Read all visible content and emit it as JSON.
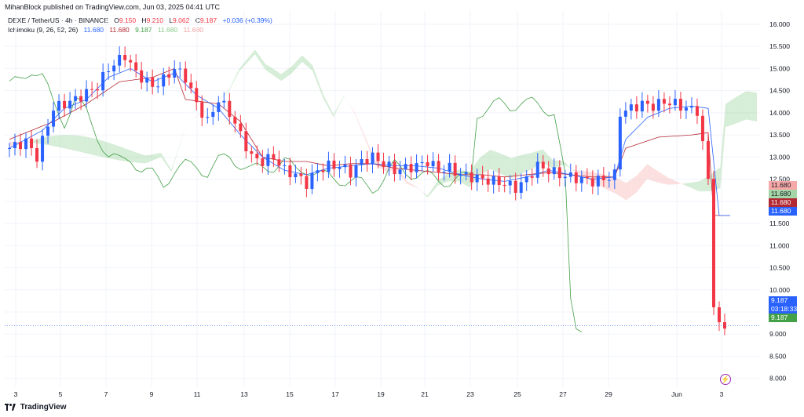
{
  "header": {
    "published_text": "MihanBlock published on TradingView.com, Jun 03, 2025 04:41 UTC"
  },
  "legend": {
    "symbol": "DEXE / TetherUS · 4h · BINANCE",
    "o_label": "O",
    "o_value": "9.150",
    "h_label": "H",
    "h_value": "9.210",
    "l_label": "L",
    "l_value": "9.062",
    "c_label": "C",
    "c_value": "9.187",
    "change": "+0.036 (+0.39%)",
    "ichimoku_label": "Ichimoku (9, 26, 52, 26)",
    "ichimoku_values": [
      "11.680",
      "11.680",
      "9.187",
      "11.680",
      "11.680"
    ]
  },
  "colors": {
    "up": "#2962ff",
    "down": "#f23645",
    "conversion": "#2962ff",
    "base": "#b22833",
    "lagging": "#43a047",
    "cloud_bull": "#a5d6a7",
    "cloud_bear": "#f8bbbb",
    "grid": "#f0f3fa",
    "axis_text": "#131722"
  },
  "price_badges": [
    {
      "value": "11.680",
      "color": "#f7a8a8",
      "text_color": "#131722"
    },
    {
      "value": "11.680",
      "color": "#a5d6a7",
      "text_color": "#131722"
    },
    {
      "value": "11.680",
      "color": "#b22833",
      "text_color": "#ffffff"
    },
    {
      "value": "11.680",
      "color": "#2962ff",
      "text_color": "#ffffff"
    },
    {
      "value": "9.187",
      "color": "#2962ff",
      "text_color": "#ffffff"
    },
    {
      "value": "03:18:33",
      "color": "#2962ff",
      "text_color": "#ffffff"
    },
    {
      "value": "9.187",
      "color": "#43a047",
      "text_color": "#ffffff"
    }
  ],
  "footer": {
    "brand": "TradingView",
    "flash_icon": "lightning-icon"
  },
  "chart_data": {
    "type": "candlestick",
    "ylim": [
      7.8,
      16.3
    ],
    "y_ticks": [
      "8.000",
      "8.500",
      "9.000",
      "9.500",
      "10.000",
      "10.500",
      "11.000",
      "11.500",
      "12.000",
      "12.500",
      "13.000",
      "13.500",
      "14.000",
      "14.500",
      "15.000",
      "15.500",
      "16.000"
    ],
    "x_ticks": [
      "3",
      "5",
      "7",
      "9",
      "11",
      "13",
      "15",
      "17",
      "19",
      "21",
      "23",
      "25",
      "27",
      "29",
      "Jun",
      "3"
    ],
    "grid": true,
    "last_price": 9.187,
    "price_path": [
      [
        0,
        13.2
      ],
      [
        3,
        13.35
      ],
      [
        5,
        13.0
      ],
      [
        8,
        14.1
      ],
      [
        12,
        14.3
      ],
      [
        16,
        14.6
      ],
      [
        18,
        15.0
      ],
      [
        21,
        15.3
      ],
      [
        23,
        14.9
      ],
      [
        26,
        14.6
      ],
      [
        28,
        14.75
      ],
      [
        30,
        15.0
      ],
      [
        32,
        14.8
      ],
      [
        34,
        14.2
      ],
      [
        36,
        13.8
      ],
      [
        38,
        14.3
      ],
      [
        40,
        14.0
      ],
      [
        42,
        13.5
      ],
      [
        44,
        13.0
      ],
      [
        46,
        12.9
      ],
      [
        48,
        13.0
      ],
      [
        50,
        12.7
      ],
      [
        52,
        12.6
      ],
      [
        54,
        12.4
      ],
      [
        56,
        12.7
      ],
      [
        58,
        12.8
      ],
      [
        60,
        12.8
      ],
      [
        62,
        12.65
      ],
      [
        64,
        12.9
      ],
      [
        66,
        13.0
      ],
      [
        68,
        12.85
      ],
      [
        70,
        12.7
      ],
      [
        72,
        12.75
      ],
      [
        74,
        12.8
      ],
      [
        76,
        12.9
      ],
      [
        78,
        12.7
      ],
      [
        80,
        12.75
      ],
      [
        82,
        12.6
      ],
      [
        84,
        12.55
      ],
      [
        86,
        12.5
      ],
      [
        88,
        12.45
      ],
      [
        90,
        12.4
      ],
      [
        92,
        12.3
      ],
      [
        94,
        12.5
      ],
      [
        96,
        12.8
      ],
      [
        98,
        12.7
      ],
      [
        100,
        12.6
      ],
      [
        102,
        12.55
      ],
      [
        104,
        12.5
      ],
      [
        106,
        12.45
      ],
      [
        108,
        12.5
      ],
      [
        110,
        12.6
      ],
      [
        111,
        14.0
      ],
      [
        113,
        14.1
      ],
      [
        115,
        14.2
      ],
      [
        117,
        14.15
      ],
      [
        119,
        14.25
      ],
      [
        121,
        14.2
      ],
      [
        123,
        14.1
      ],
      [
        125,
        14.05
      ],
      [
        127,
        12.5
      ],
      [
        128,
        9.7
      ],
      [
        129,
        9.15
      ],
      [
        130,
        9.187
      ]
    ],
    "ichimoku": {
      "conversion": [
        [
          0,
          13.2
        ],
        [
          6,
          13.6
        ],
        [
          10,
          14.1
        ],
        [
          14,
          14.3
        ],
        [
          18,
          14.8
        ],
        [
          22,
          15.0
        ],
        [
          26,
          14.7
        ],
        [
          30,
          14.9
        ],
        [
          34,
          14.4
        ],
        [
          38,
          14.1
        ],
        [
          42,
          13.5
        ],
        [
          46,
          13.0
        ],
        [
          50,
          12.7
        ],
        [
          54,
          12.6
        ],
        [
          58,
          12.75
        ],
        [
          62,
          12.8
        ],
        [
          66,
          12.85
        ],
        [
          70,
          12.8
        ],
        [
          74,
          12.8
        ],
        [
          78,
          12.75
        ],
        [
          82,
          12.6
        ],
        [
          86,
          12.5
        ],
        [
          90,
          12.45
        ],
        [
          94,
          12.55
        ],
        [
          98,
          12.7
        ],
        [
          102,
          12.6
        ],
        [
          106,
          12.5
        ],
        [
          110,
          12.55
        ],
        [
          112,
          13.4
        ],
        [
          116,
          13.9
        ],
        [
          120,
          14.1
        ],
        [
          124,
          14.15
        ],
        [
          127,
          14.1
        ],
        [
          129,
          11.68
        ],
        [
          131,
          11.68
        ]
      ],
      "base": [
        [
          0,
          13.4
        ],
        [
          8,
          13.8
        ],
        [
          14,
          14.2
        ],
        [
          20,
          14.7
        ],
        [
          26,
          14.8
        ],
        [
          30,
          15.0
        ],
        [
          32,
          14.3
        ],
        [
          38,
          14.2
        ],
        [
          42,
          13.8
        ],
        [
          46,
          13.0
        ],
        [
          50,
          12.9
        ],
        [
          54,
          12.9
        ],
        [
          58,
          12.8
        ],
        [
          62,
          12.85
        ],
        [
          66,
          12.85
        ],
        [
          70,
          12.75
        ],
        [
          74,
          12.7
        ],
        [
          78,
          12.65
        ],
        [
          82,
          12.6
        ],
        [
          86,
          12.6
        ],
        [
          90,
          12.55
        ],
        [
          94,
          12.6
        ],
        [
          98,
          12.65
        ],
        [
          102,
          12.6
        ],
        [
          106,
          12.55
        ],
        [
          110,
          12.55
        ],
        [
          112,
          13.2
        ],
        [
          118,
          13.45
        ],
        [
          124,
          13.5
        ],
        [
          127,
          13.55
        ],
        [
          128,
          11.68
        ],
        [
          131,
          11.68
        ]
      ]
    }
  }
}
